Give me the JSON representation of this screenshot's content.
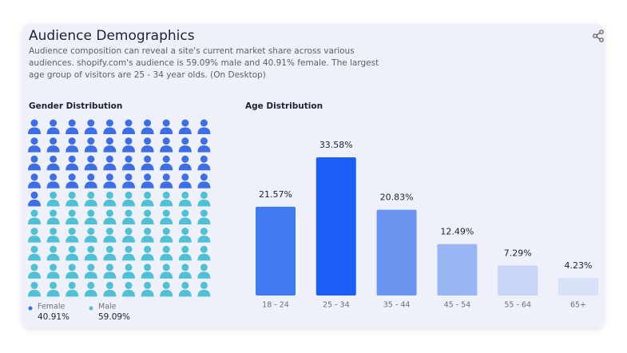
{
  "header": {
    "title": "Audience Demographics",
    "description_lines": [
      "Audience composition can reveal a site's current market share across various",
      "audiences. shopify.com's audience is 59.09% male and 40.91% female. The largest",
      "age group of visitors are 25 - 34 year olds. (On Desktop)"
    ]
  },
  "chart_data": [
    {
      "type": "waffle",
      "title": "Gender Distribution",
      "series": [
        {
          "name": "Female",
          "color": "#3d6ee6",
          "values": [
            40.91
          ],
          "value_labels": [
            "40.91%"
          ]
        },
        {
          "name": "Male",
          "color": "#4fc0d6",
          "values": [
            59.09
          ],
          "value_labels": [
            "59.09%"
          ]
        }
      ]
    },
    {
      "type": "bar",
      "title": "Age Distribution",
      "categories": [
        "18 - 24",
        "25 - 34",
        "35 - 44",
        "45 - 54",
        "55 - 64",
        "65+"
      ],
      "values": [
        21.57,
        33.58,
        20.83,
        12.49,
        7.29,
        4.23
      ],
      "value_labels": [
        "21.57%",
        "33.58%",
        "20.83%",
        "12.49%",
        "7.29%",
        "4.23%"
      ],
      "colors": [
        "#3f7af0",
        "#1a5ef5",
        "#6b95f0",
        "#9ab5f3",
        "#c7d5f6",
        "#d8e1f7"
      ]
    }
  ]
}
